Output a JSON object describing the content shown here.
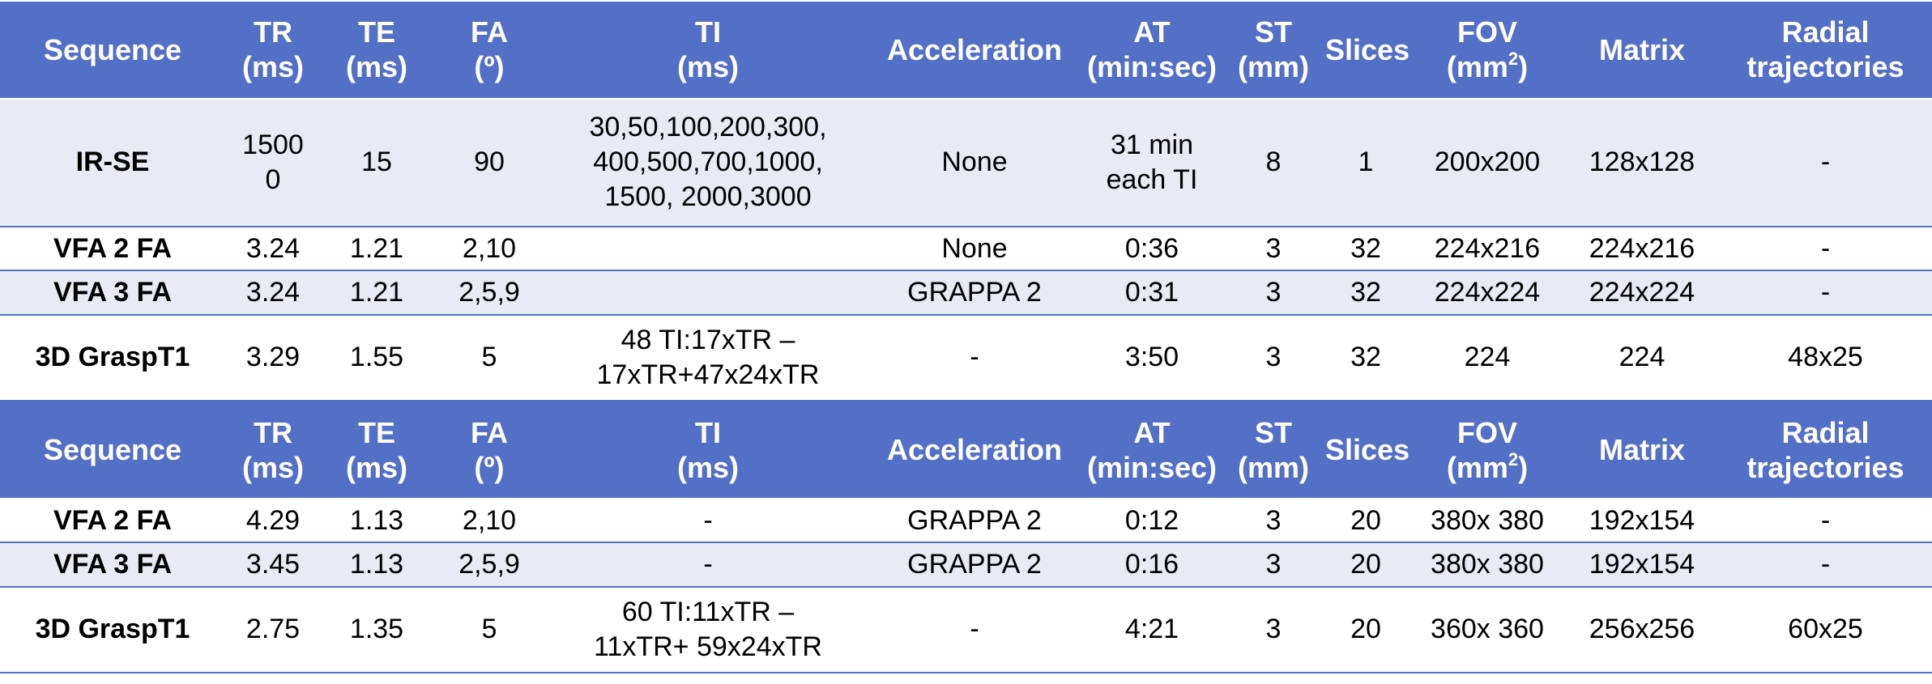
{
  "colors": {
    "header_bg": "#5470c6",
    "header_text": "#ffffff",
    "band_row_bg": "#e8ebf4",
    "plain_row_bg": "#ffffff",
    "rule_color": "#5470c6"
  },
  "header": [
    "Sequence",
    "TR\n(ms)",
    "TE\n(ms)",
    "FA\n(º)",
    "TI\n(ms)",
    "Acceleration",
    "AT\n(min:sec)",
    "ST\n(mm)",
    "Slices",
    "FOV\n(mm²)",
    "Matrix",
    "Radial\ntrajectories"
  ],
  "section1": [
    [
      "IR-SE",
      "1500\n0",
      "15",
      "90",
      "30,50,100,200,300,\n400,500,700,1000,\n1500, 2000,3000",
      "None",
      "31 min\neach TI",
      "8",
      "1",
      "200x200",
      "128x128",
      "-"
    ],
    [
      "VFA 2 FA",
      "3.24",
      "1.21",
      "2,10",
      "",
      "None",
      "0:36",
      "3",
      "32",
      "224x216",
      "224x216",
      "-"
    ],
    [
      "VFA 3 FA",
      "3.24",
      "1.21",
      "2,5,9",
      "",
      "GRAPPA 2",
      "0:31",
      "3",
      "32",
      "224x224",
      "224x224",
      "-"
    ],
    [
      "3D GraspT1",
      "3.29",
      "1.55",
      "5",
      "48 TI:17xTR –\n17xTR+47x24xTR",
      "-",
      "3:50",
      "3",
      "32",
      "224",
      "224",
      "48x25"
    ]
  ],
  "section2": [
    [
      "VFA 2 FA",
      "4.29",
      "1.13",
      "2,10",
      "-",
      "GRAPPA 2",
      "0:12",
      "3",
      "20",
      "380x 380",
      "192x154",
      "-"
    ],
    [
      "VFA 3 FA",
      "3.45",
      "1.13",
      "2,5,9",
      "-",
      "GRAPPA 2",
      "0:16",
      "3",
      "20",
      "380x 380",
      "192x154",
      "-"
    ],
    [
      "3D GraspT1",
      "2.75",
      "1.35",
      "5",
      "60 TI:11xTR –\n11xTR+ 59x24xTR",
      "-",
      "4:21",
      "3",
      "20",
      "360x 360",
      "256x256",
      "60x25"
    ]
  ]
}
